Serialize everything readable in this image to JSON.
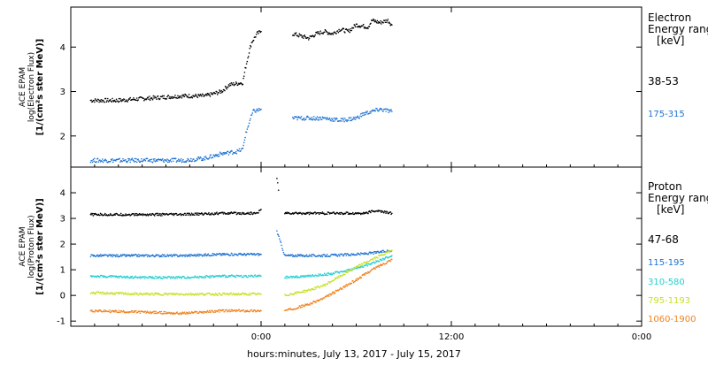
{
  "chart_data": [
    {
      "type": "scatter",
      "panel": "electron",
      "ylabel_lines": [
        "ACE EPAM",
        "log(Electron Flux)",
        "[1/(cm²s ster MeV)]"
      ],
      "ylim": [
        1.3,
        4.9
      ],
      "yticks": [
        2,
        3,
        4
      ],
      "legend_title_lines": [
        "Electron",
        "Energy range",
        "[keV]"
      ],
      "series": [
        {
          "name": "38-53",
          "color": "#000000",
          "values": [
            [
              -21.5,
              2.8
            ],
            [
              -18,
              2.8
            ],
            [
              -14,
              2.85
            ],
            [
              -10,
              2.9
            ],
            [
              -7,
              2.9
            ],
            [
              -5,
              3.0
            ],
            [
              -4,
              3.15
            ],
            [
              -2.3,
              3.2
            ],
            [
              -2,
              3.5
            ],
            [
              -1.5,
              3.9
            ],
            [
              -1.2,
              4.1
            ],
            [
              -0.5,
              4.3
            ],
            [
              0,
              4.35
            ],
            [
              null,
              null
            ],
            [
              4,
              4.3
            ],
            [
              5,
              4.25
            ],
            [
              6,
              4.2
            ],
            [
              7,
              4.3
            ],
            [
              8,
              4.35
            ],
            [
              9,
              4.3
            ],
            [
              10,
              4.4
            ],
            [
              11,
              4.35
            ],
            [
              12,
              4.5
            ],
            [
              13.5,
              4.45
            ],
            [
              14,
              4.6
            ],
            [
              15,
              4.55
            ],
            [
              16,
              4.6
            ],
            [
              16.5,
              4.5
            ]
          ]
        },
        {
          "name": "175-315",
          "color": "#1e73d2",
          "values": [
            [
              -21.5,
              1.45
            ],
            [
              -18,
              1.45
            ],
            [
              -14,
              1.45
            ],
            [
              -10,
              1.45
            ],
            [
              -7,
              1.5
            ],
            [
              -5,
              1.6
            ],
            [
              -3,
              1.65
            ],
            [
              -2.3,
              1.7
            ],
            [
              -2,
              2.0
            ],
            [
              -1.5,
              2.3
            ],
            [
              -1,
              2.55
            ],
            [
              0,
              2.6
            ],
            [
              null,
              null
            ],
            [
              4,
              2.4
            ],
            [
              6,
              2.4
            ],
            [
              8,
              2.4
            ],
            [
              10,
              2.35
            ],
            [
              12,
              2.4
            ],
            [
              13,
              2.5
            ],
            [
              14,
              2.55
            ],
            [
              15,
              2.6
            ],
            [
              16.5,
              2.55
            ]
          ]
        }
      ]
    },
    {
      "type": "scatter",
      "panel": "proton",
      "ylabel_lines": [
        "ACE EPAM",
        "log(Proton Flux)",
        "[1/(cm²s ster MeV)]"
      ],
      "ylim": [
        -1.2,
        5.0
      ],
      "yticks": [
        -1,
        0,
        1,
        2,
        3,
        4
      ],
      "legend_title_lines": [
        "Proton",
        "Energy range",
        "[keV]"
      ],
      "series": [
        {
          "name": "47-68",
          "color": "#000000",
          "values": [
            [
              -21.5,
              3.15
            ],
            [
              -15,
              3.15
            ],
            [
              -10,
              3.15
            ],
            [
              -5,
              3.2
            ],
            [
              -0.5,
              3.2
            ],
            [
              0,
              3.35
            ],
            [
              null,
              null
            ],
            [
              2,
              4.6
            ],
            [
              2.2,
              4.1
            ],
            [
              null,
              null
            ],
            [
              3,
              3.2
            ],
            [
              8,
              3.2
            ],
            [
              13,
              3.2
            ],
            [
              14.5,
              3.3
            ],
            [
              16.5,
              3.2
            ]
          ]
        },
        {
          "name": "115-195",
          "color": "#1e73d2",
          "values": [
            [
              -21.5,
              1.55
            ],
            [
              -15,
              1.55
            ],
            [
              -10,
              1.55
            ],
            [
              -5,
              1.6
            ],
            [
              0,
              1.6
            ],
            [
              null,
              null
            ],
            [
              2,
              2.5
            ],
            [
              3,
              1.55
            ],
            [
              8,
              1.55
            ],
            [
              12,
              1.6
            ],
            [
              14,
              1.65
            ],
            [
              16.5,
              1.75
            ]
          ]
        },
        {
          "name": "310-580",
          "color": "#22cfcf",
          "values": [
            [
              -21.5,
              0.75
            ],
            [
              -15,
              0.7
            ],
            [
              -10,
              0.7
            ],
            [
              -5,
              0.75
            ],
            [
              0,
              0.75
            ],
            [
              null,
              null
            ],
            [
              3,
              0.7
            ],
            [
              6,
              0.75
            ],
            [
              9,
              0.85
            ],
            [
              12,
              1.05
            ],
            [
              14,
              1.25
            ],
            [
              16.5,
              1.55
            ]
          ]
        },
        {
          "name": "795-1193",
          "color": "#c8e028",
          "values": [
            [
              -21.5,
              0.1
            ],
            [
              -15,
              0.05
            ],
            [
              -10,
              0.05
            ],
            [
              -5,
              0.05
            ],
            [
              0,
              0.05
            ],
            [
              null,
              null
            ],
            [
              3,
              0.0
            ],
            [
              6,
              0.2
            ],
            [
              8,
              0.4
            ],
            [
              10,
              0.75
            ],
            [
              12,
              1.1
            ],
            [
              14,
              1.4
            ],
            [
              16.5,
              1.75
            ]
          ]
        },
        {
          "name": "1060-1900",
          "color": "#f0821e",
          "values": [
            [
              -21.5,
              -0.6
            ],
            [
              -15,
              -0.65
            ],
            [
              -10,
              -0.7
            ],
            [
              -5,
              -0.6
            ],
            [
              0,
              -0.6
            ],
            [
              null,
              null
            ],
            [
              3,
              -0.6
            ],
            [
              6,
              -0.35
            ],
            [
              8,
              -0.1
            ],
            [
              10,
              0.25
            ],
            [
              12,
              0.6
            ],
            [
              14,
              1.0
            ],
            [
              16.5,
              1.4
            ]
          ]
        }
      ]
    }
  ],
  "x_axis": {
    "xlim": [
      -24,
      48
    ],
    "tick_labels": [
      "0:00",
      "12:00",
      "0:00"
    ],
    "tick_values": [
      0,
      24,
      48
    ],
    "label": "hours:minutes, July 13, 2017 - July 15, 2017"
  }
}
